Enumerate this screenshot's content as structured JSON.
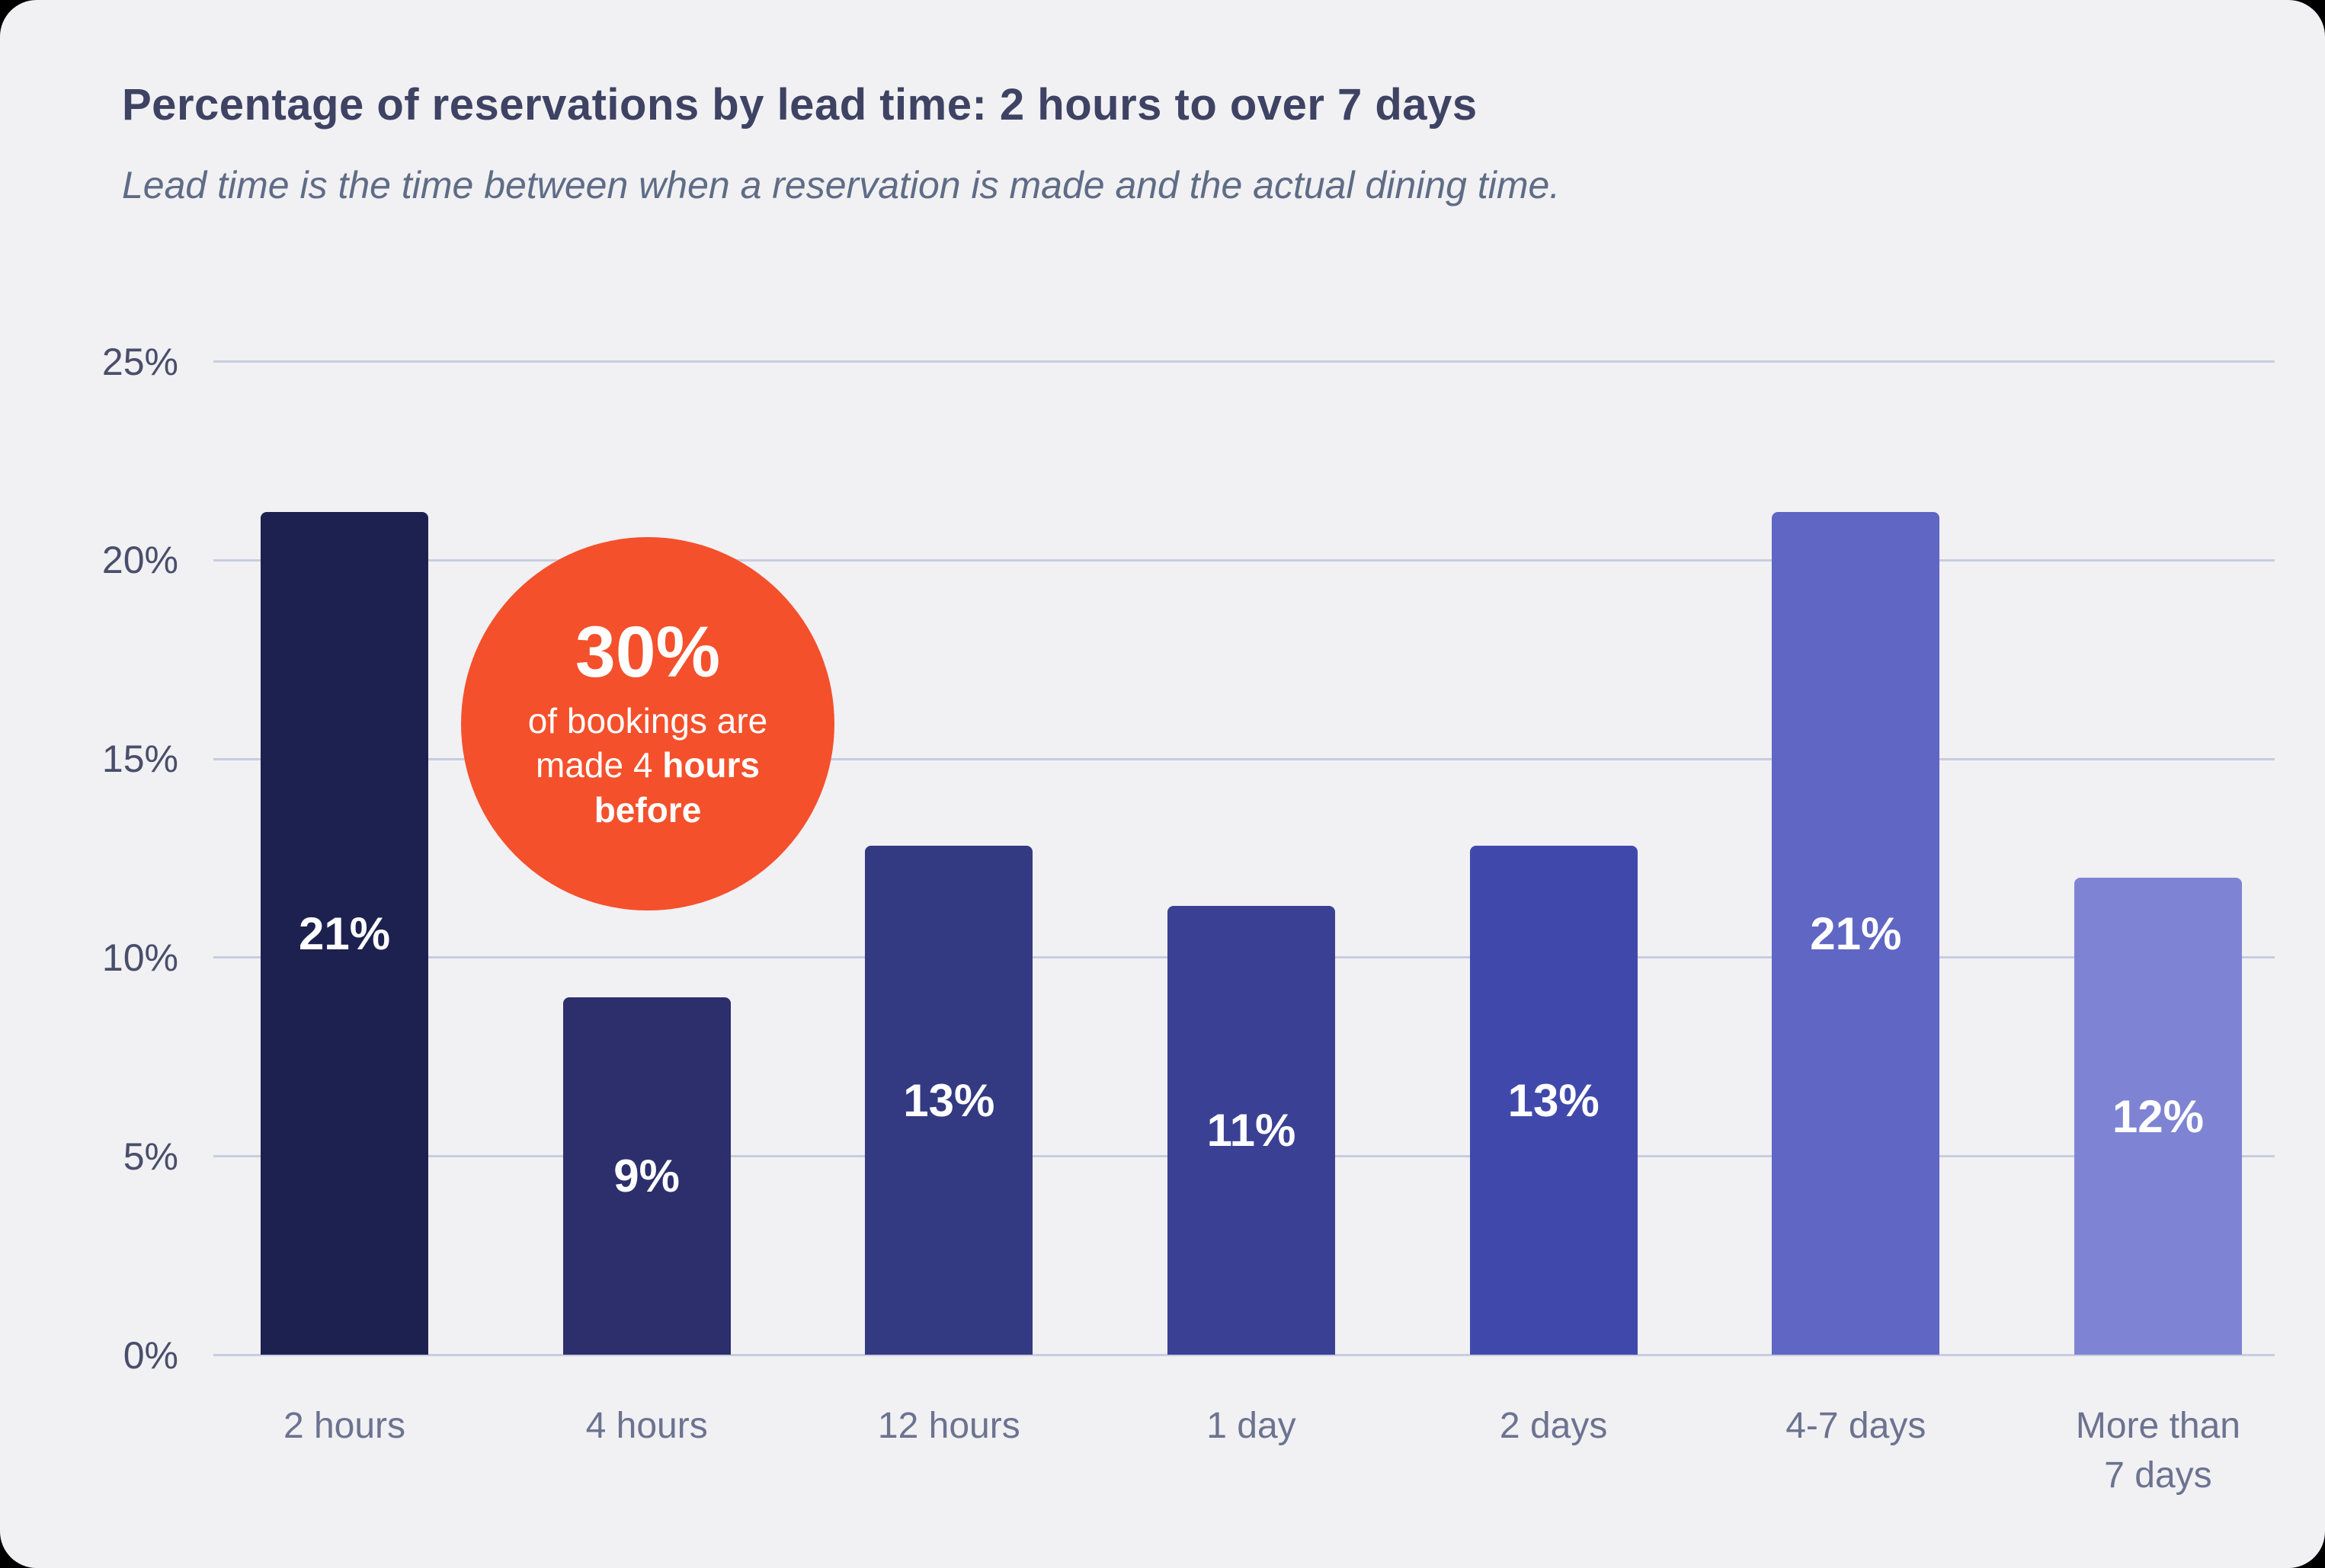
{
  "chart_data": {
    "type": "bar",
    "title": "Percentage of reservations by lead time: 2 hours to over 7 days",
    "subtitle": "Lead time is the time between when a reservation is made and the actual dining time.",
    "categories": [
      "2 hours",
      "4 hours",
      "12 hours",
      "1 day",
      "2 days",
      "4-7 days",
      "More than 7 days"
    ],
    "values": [
      21.2,
      9,
      12.8,
      11.3,
      12.8,
      21.2,
      12
    ],
    "bar_labels": [
      "21%",
      "9%",
      "13%",
      "11%",
      "13%",
      "21%",
      "12%"
    ],
    "bar_colors": [
      "#1d2150",
      "#2c2f6c",
      "#333a82",
      "#3a4094",
      "#4049ab",
      "#5f66c4",
      "#7e84d3"
    ],
    "y_ticks": [
      "25%",
      "20%",
      "15%",
      "10%",
      "5%",
      "0%"
    ],
    "ylim": [
      0,
      25
    ],
    "grid": true,
    "legend": "none",
    "xlabel": "",
    "ylabel": "",
    "annotation": {
      "headline": "30%",
      "line1": "of bookings are",
      "line2_regular": "made 4 ",
      "line2_bold": "hours",
      "line3_bold": "before",
      "bg_color": "#f4502b"
    }
  }
}
